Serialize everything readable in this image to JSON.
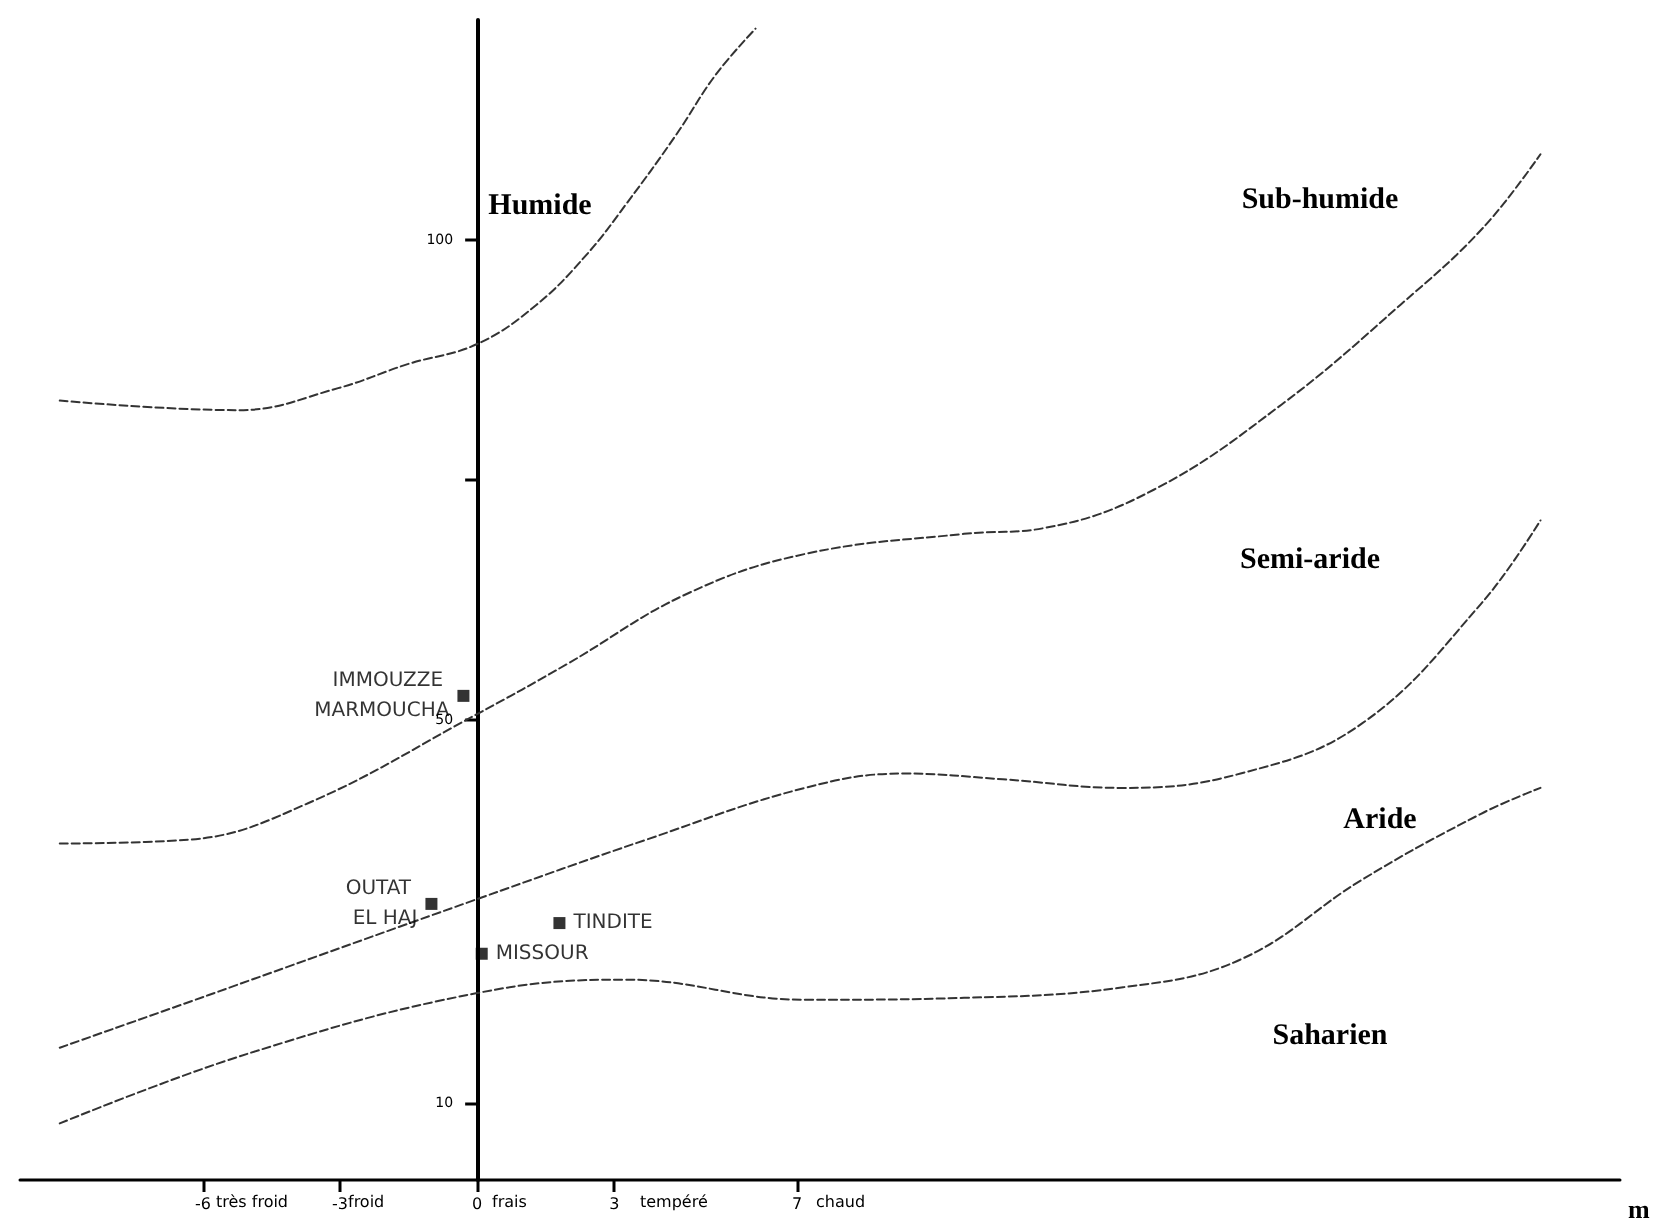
{
  "chart_data": {
    "type": "scatter",
    "xlabel": "m",
    "xlim": [
      -10,
      25
    ],
    "ylim": [
      2,
      123
    ],
    "xticks": [
      -6,
      -3,
      0,
      3,
      7
    ],
    "yticks": [
      10,
      50,
      {
        "value": 75,
        "label": null
      },
      100
    ],
    "grid": false,
    "legend": false,
    "marker": "square",
    "series": [
      {
        "type": "line",
        "line_style": "dashed",
        "marker": "none",
        "color": "#333333",
        "x": [
          -9.13,
          -5.22,
          -3.04,
          -1.52,
          0,
          1.3,
          2.39,
          3.26,
          4.35,
          5.22,
          6.09
        ],
        "values": [
          83.3,
          82.3,
          84.6,
          87.1,
          89.2,
          93.3,
          98.5,
          103.8,
          111,
          117.3,
          122.1
        ]
      },
      {
        "type": "line",
        "line_style": "dashed",
        "marker": "none",
        "color": "#333333",
        "x": [
          -9.13,
          -6.3,
          -3.7,
          0,
          1.96,
          4.57,
          7.17,
          10.65,
          12.4,
          14.8,
          17.6,
          20.2,
          22,
          23.26
        ],
        "values": [
          37.1,
          37.5,
          41.3,
          50.6,
          55.8,
          63.1,
          67.3,
          69.4,
          70,
          74,
          82.9,
          93.3,
          101.3,
          109
        ]
      },
      {
        "type": "line",
        "line_style": "dashed",
        "marker": "none",
        "color": "#333333",
        "x": [
          -9.13,
          -5.87,
          0,
          3.7,
          7.17,
          9.35,
          11.5,
          14.13,
          16.7,
          19.35,
          21.96,
          23.26
        ],
        "values": [
          15.8,
          21.3,
          31.3,
          37.5,
          42.9,
          44.4,
          43.8,
          42.9,
          44.4,
          49.6,
          62.1,
          70.8
        ]
      },
      {
        "type": "line",
        "line_style": "dashed",
        "marker": "none",
        "color": "#333333",
        "x": [
          -9.13,
          -5,
          0,
          3.26,
          7.17,
          10.65,
          14.13,
          16.7,
          19.35,
          21.96,
          23.26
        ],
        "values": [
          7.9,
          15.2,
          21.5,
          22.9,
          20.8,
          21,
          22.1,
          25,
          33.3,
          40.2,
          42.9
        ]
      },
      {
        "name": "IMMOUZZE MARMOUCHA",
        "color": "#000000",
        "x": [
          -0.3
        ],
        "values": [
          52.5
        ]
      },
      {
        "name": "OUTAT EL HAJ",
        "color": "#000000",
        "x": [
          -1.0
        ],
        "values": [
          30.8
        ]
      },
      {
        "name": "TINDITE",
        "color": "#000000",
        "x": [
          1.8
        ],
        "values": [
          28.8
        ]
      },
      {
        "name": "MISSOUR",
        "color": "#000000",
        "x": [
          0.1
        ],
        "values": [
          25.6
        ]
      }
    ],
    "annotations": [
      "Humide",
      "Sub-humide",
      "Semi-aride",
      "Aride",
      "Saharien",
      "très froid",
      "froid",
      "frais",
      "tempéré",
      "chaud"
    ]
  }
}
